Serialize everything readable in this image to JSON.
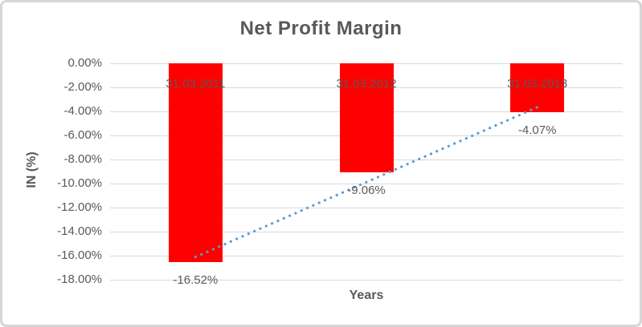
{
  "chart_data": {
    "type": "bar",
    "title": "Net Profit Margin",
    "xlabel": "Years",
    "ylabel": "IN (%)",
    "categories": [
      "31.03.2011",
      "31.03.2012",
      "31.03.2013"
    ],
    "values": [
      -16.52,
      -9.06,
      -4.07
    ],
    "data_labels": [
      "-16.52%",
      "-9.06%",
      "-4.07%"
    ],
    "ytick_labels": [
      "0.00%",
      "-2.00%",
      "-4.00%",
      "-6.00%",
      "-8.00%",
      "-10.00%",
      "-12.00%",
      "-14.00%",
      "-16.00%",
      "-18.00%"
    ],
    "ytick_values": [
      0,
      -2,
      -4,
      -6,
      -8,
      -10,
      -12,
      -14,
      -16,
      -18
    ],
    "ylim": [
      -18,
      0
    ],
    "grid": true,
    "legend": false,
    "bar_color": "#FF0000",
    "text_color": "#595959",
    "gridline_color": "#D9D9D9",
    "trendline": {
      "type": "linear",
      "style": "dotted",
      "color": "#5B9BD5"
    }
  }
}
